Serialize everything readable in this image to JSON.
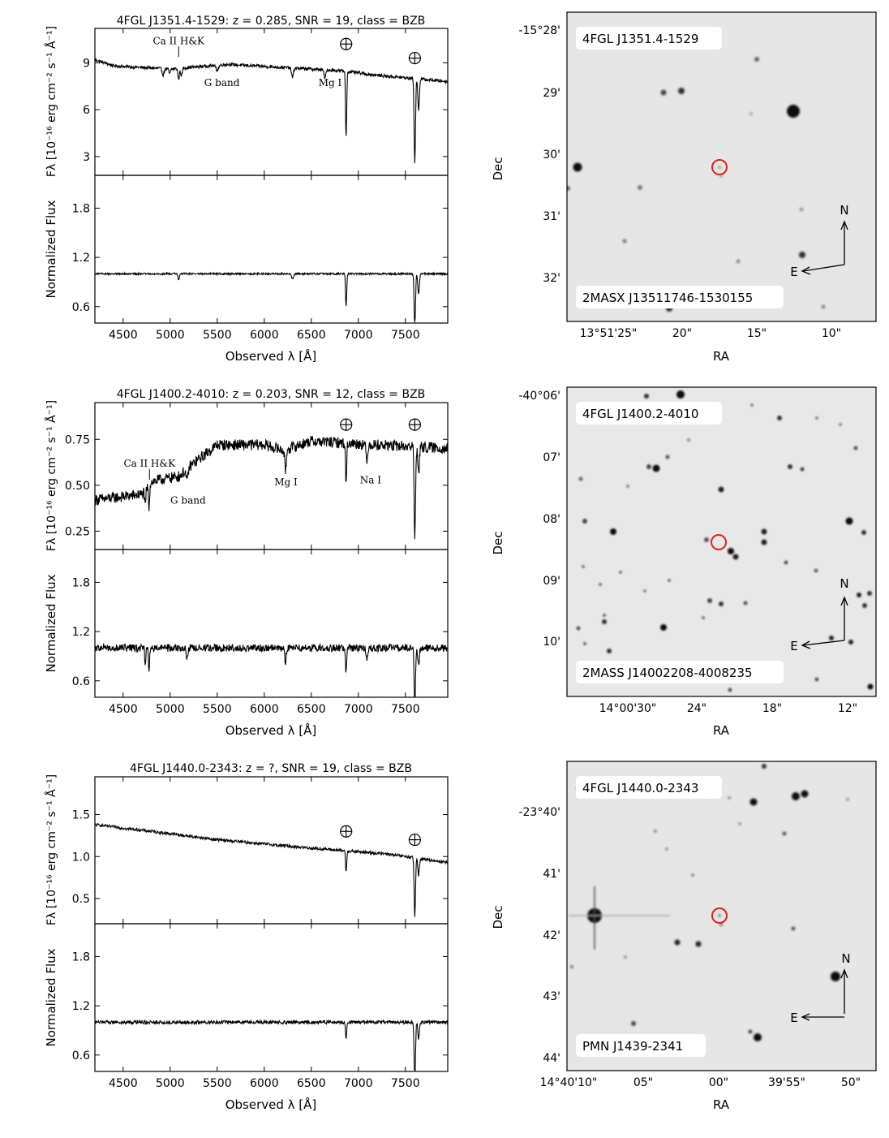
{
  "chart_data": [
    {
      "type": "line",
      "title": "4FGL J1351.4-1529: z = 0.285, SNR = 19, class = BZB",
      "xlabel": "Observed λ [Å]",
      "ylabel_top": "Fλ [10⁻¹⁶ erg cm⁻² s⁻¹ Å⁻¹]",
      "ylabel_bottom": "Normalized Flux",
      "xlim": [
        4200,
        7950
      ],
      "xticks": [
        4500,
        5000,
        5500,
        6000,
        6500,
        7000,
        7500
      ],
      "top": {
        "ylim": [
          1.8,
          11.2
        ],
        "yticks": [
          3,
          6,
          9
        ],
        "ytick_labels": [
          "3",
          "6",
          "9"
        ],
        "continuum": [
          [
            4200,
            9.2
          ],
          [
            4400,
            8.8
          ],
          [
            5000,
            8.6
          ],
          [
            5600,
            8.9
          ],
          [
            6200,
            8.7
          ],
          [
            6800,
            8.5
          ],
          [
            7200,
            8.2
          ],
          [
            7950,
            7.8
          ]
        ],
        "noise": 0.1,
        "absorptions": [
          {
            "x": 4925,
            "depth": 0.4,
            "w": 10
          },
          {
            "x": 4995,
            "depth": 0.3,
            "w": 8
          },
          {
            "x": 5090,
            "depth": 0.7,
            "w": 8
          },
          {
            "x": 5120,
            "depth": 0.5,
            "w": 8
          },
          {
            "x": 5500,
            "depth": 0.3,
            "w": 15
          },
          {
            "x": 6300,
            "depth": 0.6,
            "w": 10
          },
          {
            "x": 6645,
            "depth": 0.5,
            "w": 10
          },
          {
            "x": 6870,
            "depth": 4.2,
            "w": 6
          },
          {
            "x": 7600,
            "depth": 5.4,
            "w": 7
          },
          {
            "x": 7640,
            "depth": 2.0,
            "w": 8
          }
        ]
      },
      "bottom": {
        "ylim": [
          0.4,
          2.2
        ],
        "yticks": [
          0.6,
          1.2,
          1.8
        ],
        "ytick_labels": [
          "0.6",
          "1.2",
          "1.8"
        ],
        "continuum": [
          [
            4200,
            1.0
          ],
          [
            7950,
            1.0
          ]
        ],
        "noise": 0.011,
        "absorptions": [
          {
            "x": 5090,
            "depth": 0.07,
            "w": 8
          },
          {
            "x": 6300,
            "depth": 0.06,
            "w": 10
          },
          {
            "x": 6870,
            "depth": 0.4,
            "w": 6
          },
          {
            "x": 7600,
            "depth": 0.65,
            "w": 7
          },
          {
            "x": 7640,
            "depth": 0.25,
            "w": 8
          }
        ]
      },
      "annotations": [
        {
          "text": "Ca II H&K",
          "x": 5090,
          "y": 10.2,
          "tick": true
        },
        {
          "text": "G band",
          "x": 5550,
          "y": 7.5
        },
        {
          "text": "Mg I",
          "x": 6700,
          "y": 7.5
        }
      ],
      "telluric": [
        {
          "x": 6870,
          "y": 10.2
        },
        {
          "x": 7600,
          "y": 9.3
        }
      ]
    },
    {
      "type": "line",
      "title": "4FGL J1400.2-4010: z = 0.203, SNR = 12, class = BZB",
      "xlabel": "Observed λ [Å]",
      "ylabel_top": "Fλ [10⁻¹⁶ erg cm⁻² s⁻¹ Å⁻¹]",
      "ylabel_bottom": "Normalized Flux",
      "xlim": [
        4200,
        7950
      ],
      "xticks": [
        4500,
        5000,
        5500,
        6000,
        6500,
        7000,
        7500
      ],
      "top": {
        "ylim": [
          0.15,
          0.95
        ],
        "yticks": [
          0.25,
          0.5,
          0.75
        ],
        "ytick_labels": [
          "0.25",
          "0.50",
          "0.75"
        ],
        "continuum": [
          [
            4200,
            0.42
          ],
          [
            4700,
            0.45
          ],
          [
            4800,
            0.52
          ],
          [
            5100,
            0.55
          ],
          [
            5200,
            0.6
          ],
          [
            5500,
            0.72
          ],
          [
            6000,
            0.72
          ],
          [
            6200,
            0.69
          ],
          [
            6500,
            0.74
          ],
          [
            7200,
            0.72
          ],
          [
            7950,
            0.7
          ]
        ],
        "noise": 0.03,
        "absorptions": [
          {
            "x": 4735,
            "depth": 0.1,
            "w": 6
          },
          {
            "x": 4775,
            "depth": 0.12,
            "w": 6
          },
          {
            "x": 5180,
            "depth": 0.07,
            "w": 10
          },
          {
            "x": 6225,
            "depth": 0.12,
            "w": 8
          },
          {
            "x": 6870,
            "depth": 0.22,
            "w": 6
          },
          {
            "x": 7090,
            "depth": 0.1,
            "w": 8
          },
          {
            "x": 7600,
            "depth": 0.5,
            "w": 7
          },
          {
            "x": 7640,
            "depth": 0.15,
            "w": 8
          }
        ]
      },
      "bottom": {
        "ylim": [
          0.4,
          2.2
        ],
        "yticks": [
          0.6,
          1.2,
          1.8
        ],
        "ytick_labels": [
          "0.6",
          "1.2",
          "1.8"
        ],
        "continuum": [
          [
            4200,
            1.0
          ],
          [
            7950,
            1.0
          ]
        ],
        "noise": 0.045,
        "absorptions": [
          {
            "x": 4735,
            "depth": 0.2,
            "w": 6
          },
          {
            "x": 4775,
            "depth": 0.25,
            "w": 6
          },
          {
            "x": 5180,
            "depth": 0.12,
            "w": 10
          },
          {
            "x": 6225,
            "depth": 0.17,
            "w": 8
          },
          {
            "x": 6870,
            "depth": 0.3,
            "w": 6
          },
          {
            "x": 7090,
            "depth": 0.15,
            "w": 8
          },
          {
            "x": 7600,
            "depth": 0.7,
            "w": 7
          },
          {
            "x": 7640,
            "depth": 0.2,
            "w": 8
          }
        ]
      },
      "annotations": [
        {
          "text": "Ca II H&K",
          "x": 4780,
          "y": 0.6,
          "tick": true
        },
        {
          "text": "G band",
          "x": 5190,
          "y": 0.4
        },
        {
          "text": "Mg I",
          "x": 6230,
          "y": 0.5
        },
        {
          "text": "Na I",
          "x": 7130,
          "y": 0.51
        }
      ],
      "telluric": [
        {
          "x": 6870,
          "y": 0.83
        },
        {
          "x": 7600,
          "y": 0.83
        }
      ]
    },
    {
      "type": "line",
      "title": "4FGL J1440.0-2343: z = ?, SNR = 19, class = BZB",
      "xlabel": "Observed λ [Å]",
      "ylabel_top": "Fλ [10⁻¹⁶ erg cm⁻² s⁻¹ Å⁻¹]",
      "ylabel_bottom": "Normalized Flux",
      "xlim": [
        4200,
        7950
      ],
      "xticks": [
        4500,
        5000,
        5500,
        6000,
        6500,
        7000,
        7500
      ],
      "top": {
        "ylim": [
          0.2,
          1.95
        ],
        "yticks": [
          0.5,
          1.0,
          1.5
        ],
        "ytick_labels": [
          "0.5",
          "1.0",
          "1.5"
        ],
        "continuum": [
          [
            4200,
            1.38
          ],
          [
            4800,
            1.3
          ],
          [
            5500,
            1.2
          ],
          [
            6500,
            1.1
          ],
          [
            7300,
            1.03
          ],
          [
            7950,
            0.93
          ]
        ],
        "noise": 0.018,
        "absorptions": [
          {
            "x": 6870,
            "depth": 0.25,
            "w": 6
          },
          {
            "x": 7600,
            "depth": 0.7,
            "w": 7
          },
          {
            "x": 7640,
            "depth": 0.2,
            "w": 8
          }
        ]
      },
      "bottom": {
        "ylim": [
          0.4,
          2.2
        ],
        "yticks": [
          0.6,
          1.2,
          1.8
        ],
        "ytick_labels": [
          "0.6",
          "1.2",
          "1.8"
        ],
        "continuum": [
          [
            4200,
            1.0
          ],
          [
            7950,
            1.0
          ]
        ],
        "noise": 0.02,
        "absorptions": [
          {
            "x": 6870,
            "depth": 0.22,
            "w": 6
          },
          {
            "x": 7600,
            "depth": 0.7,
            "w": 7
          },
          {
            "x": 7640,
            "depth": 0.2,
            "w": 8
          }
        ]
      },
      "annotations": [],
      "telluric": [
        {
          "x": 6870,
          "y": 1.3
        },
        {
          "x": 7600,
          "y": 1.2
        }
      ]
    }
  ],
  "finding_charts": [
    {
      "source": "4FGL J1351.4-1529",
      "counterpart": "2MASX J13511746-1530155",
      "xlabel": "RA",
      "ylabel": "Dec",
      "xtick_labels": [
        "13°51'25\"",
        "20\"",
        "15\"",
        "10\""
      ],
      "ytick_labels": [
        "-15°28'",
        "29'",
        "30'",
        "31'",
        "32'"
      ],
      "compass_n": "N",
      "compass_e": "E"
    },
    {
      "source": "4FGL J1400.2-4010",
      "counterpart": "2MASS J14002208-4008235",
      "xlabel": "RA",
      "ylabel": "Dec",
      "xtick_labels": [
        "14°00'30\"",
        "24\"",
        "18\"",
        "12\""
      ],
      "ytick_labels": [
        "-40°06'",
        "07'",
        "08'",
        "09'",
        "10'"
      ],
      "compass_n": "N",
      "compass_e": "E"
    },
    {
      "source": "4FGL J1440.0-2343",
      "counterpart": "PMN J1439-2341",
      "xlabel": "RA",
      "ylabel": "Dec",
      "xtick_labels": [
        "14°40'10\"",
        "05\"",
        "00\"",
        "39'55\"",
        "50\""
      ],
      "ytick_labels": [
        "-23°40'",
        "41'",
        "42'",
        "43'",
        "44'"
      ],
      "compass_n": "N",
      "compass_e": "E"
    }
  ]
}
